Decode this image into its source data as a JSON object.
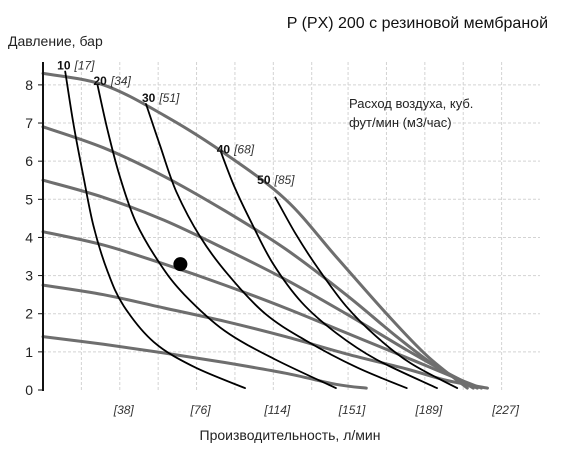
{
  "chart_data": {
    "type": "line",
    "title": "P (PX) 200 с резиновой мембраной",
    "xlabel": "Производительность, л/мин",
    "ylabel": "Давление, бар",
    "note_lines": [
      "Расход воздуха, куб.",
      "фут/мин (м3/час)"
    ],
    "xlim": [
      0,
      246
    ],
    "ylim": [
      0,
      8.6
    ],
    "x_ticks": [
      19,
      38,
      57,
      76,
      95,
      114,
      133,
      151,
      170,
      189,
      208,
      227
    ],
    "x_tick_labels": [
      {
        "value": 38,
        "label": "[38]"
      },
      {
        "value": 76,
        "label": "[76]"
      },
      {
        "value": 114,
        "label": "[114]"
      },
      {
        "value": 151,
        "label": "[151]"
      },
      {
        "value": 189,
        "label": "[189]"
      },
      {
        "value": 227,
        "label": "[227]"
      }
    ],
    "y_ticks": [
      0,
      1,
      2,
      3,
      4,
      5,
      6,
      7,
      8
    ],
    "y_tick_labels": [
      "0",
      "1",
      "2",
      "3",
      "4",
      "5",
      "6",
      "7",
      "8"
    ],
    "grid": true,
    "performance_curves": [
      {
        "points": [
          [
            0,
            8.3
          ],
          [
            30,
            8.0
          ],
          [
            60,
            7.2
          ],
          [
            90,
            6.2
          ],
          [
            120,
            5.0
          ],
          [
            145,
            3.5
          ],
          [
            170,
            2.0
          ],
          [
            190,
            0.9
          ],
          [
            210,
            0.05
          ]
        ]
      },
      {
        "points": [
          [
            0,
            6.9
          ],
          [
            30,
            6.35
          ],
          [
            60,
            5.6
          ],
          [
            90,
            4.7
          ],
          [
            120,
            3.7
          ],
          [
            150,
            2.5
          ],
          [
            175,
            1.4
          ],
          [
            195,
            0.6
          ],
          [
            213,
            0.05
          ]
        ]
      },
      {
        "points": [
          [
            0,
            5.5
          ],
          [
            30,
            5.05
          ],
          [
            60,
            4.45
          ],
          [
            90,
            3.7
          ],
          [
            120,
            2.9
          ],
          [
            150,
            2.0
          ],
          [
            180,
            1.05
          ],
          [
            200,
            0.45
          ],
          [
            215,
            0.05
          ]
        ]
      },
      {
        "points": [
          [
            0,
            4.15
          ],
          [
            30,
            3.8
          ],
          [
            60,
            3.3
          ],
          [
            90,
            2.75
          ],
          [
            120,
            2.15
          ],
          [
            150,
            1.5
          ],
          [
            180,
            0.85
          ],
          [
            205,
            0.3
          ],
          [
            217,
            0.05
          ]
        ]
      },
      {
        "points": [
          [
            0,
            2.75
          ],
          [
            30,
            2.5
          ],
          [
            60,
            2.15
          ],
          [
            90,
            1.8
          ],
          [
            120,
            1.4
          ],
          [
            150,
            0.95
          ],
          [
            180,
            0.55
          ],
          [
            200,
            0.25
          ],
          [
            220,
            0.05
          ]
        ]
      },
      {
        "points": [
          [
            0,
            1.4
          ],
          [
            30,
            1.2
          ],
          [
            60,
            0.97
          ],
          [
            90,
            0.72
          ],
          [
            120,
            0.44
          ],
          [
            145,
            0.15
          ],
          [
            160,
            0.05
          ]
        ]
      }
    ],
    "air_consumption_curves": [
      {
        "value": "10",
        "bracket": "[17]",
        "label_at": [
          7,
          8.4
        ],
        "points": [
          [
            11,
            8.35
          ],
          [
            15,
            7.0
          ],
          [
            20,
            5.6
          ],
          [
            25,
            4.3
          ],
          [
            32,
            3.1
          ],
          [
            40,
            2.2
          ],
          [
            55,
            1.25
          ],
          [
            75,
            0.6
          ],
          [
            100,
            0.05
          ]
        ]
      },
      {
        "value": "20",
        "bracket": "[34]",
        "label_at": [
          25,
          8.0
        ],
        "points": [
          [
            27,
            8.0
          ],
          [
            32,
            6.8
          ],
          [
            38,
            5.6
          ],
          [
            46,
            4.4
          ],
          [
            58,
            3.3
          ],
          [
            70,
            2.5
          ],
          [
            90,
            1.55
          ],
          [
            115,
            0.8
          ],
          [
            145,
            0.05
          ]
        ]
      },
      {
        "value": "30",
        "bracket": "[51]",
        "label_at": [
          49,
          7.55
        ],
        "points": [
          [
            51,
            7.5
          ],
          [
            58,
            6.4
          ],
          [
            66,
            5.2
          ],
          [
            78,
            4.0
          ],
          [
            92,
            3.0
          ],
          [
            110,
            2.0
          ],
          [
            130,
            1.3
          ],
          [
            155,
            0.6
          ],
          [
            180,
            0.05
          ]
        ]
      },
      {
        "value": "40",
        "bracket": "[68]",
        "label_at": [
          86,
          6.2
        ],
        "points": [
          [
            88,
            6.25
          ],
          [
            95,
            5.3
          ],
          [
            104,
            4.3
          ],
          [
            114,
            3.3
          ],
          [
            128,
            2.3
          ],
          [
            145,
            1.5
          ],
          [
            165,
            0.8
          ],
          [
            195,
            0.05
          ]
        ]
      },
      {
        "value": "50",
        "bracket": "[85]",
        "label_at": [
          106,
          5.4
        ],
        "points": [
          [
            115,
            5.05
          ],
          [
            125,
            4.1
          ],
          [
            136,
            3.2
          ],
          [
            150,
            2.2
          ],
          [
            165,
            1.4
          ],
          [
            182,
            0.7
          ],
          [
            205,
            0.05
          ]
        ]
      }
    ],
    "operating_point": {
      "x": 68,
      "y": 3.3
    }
  }
}
